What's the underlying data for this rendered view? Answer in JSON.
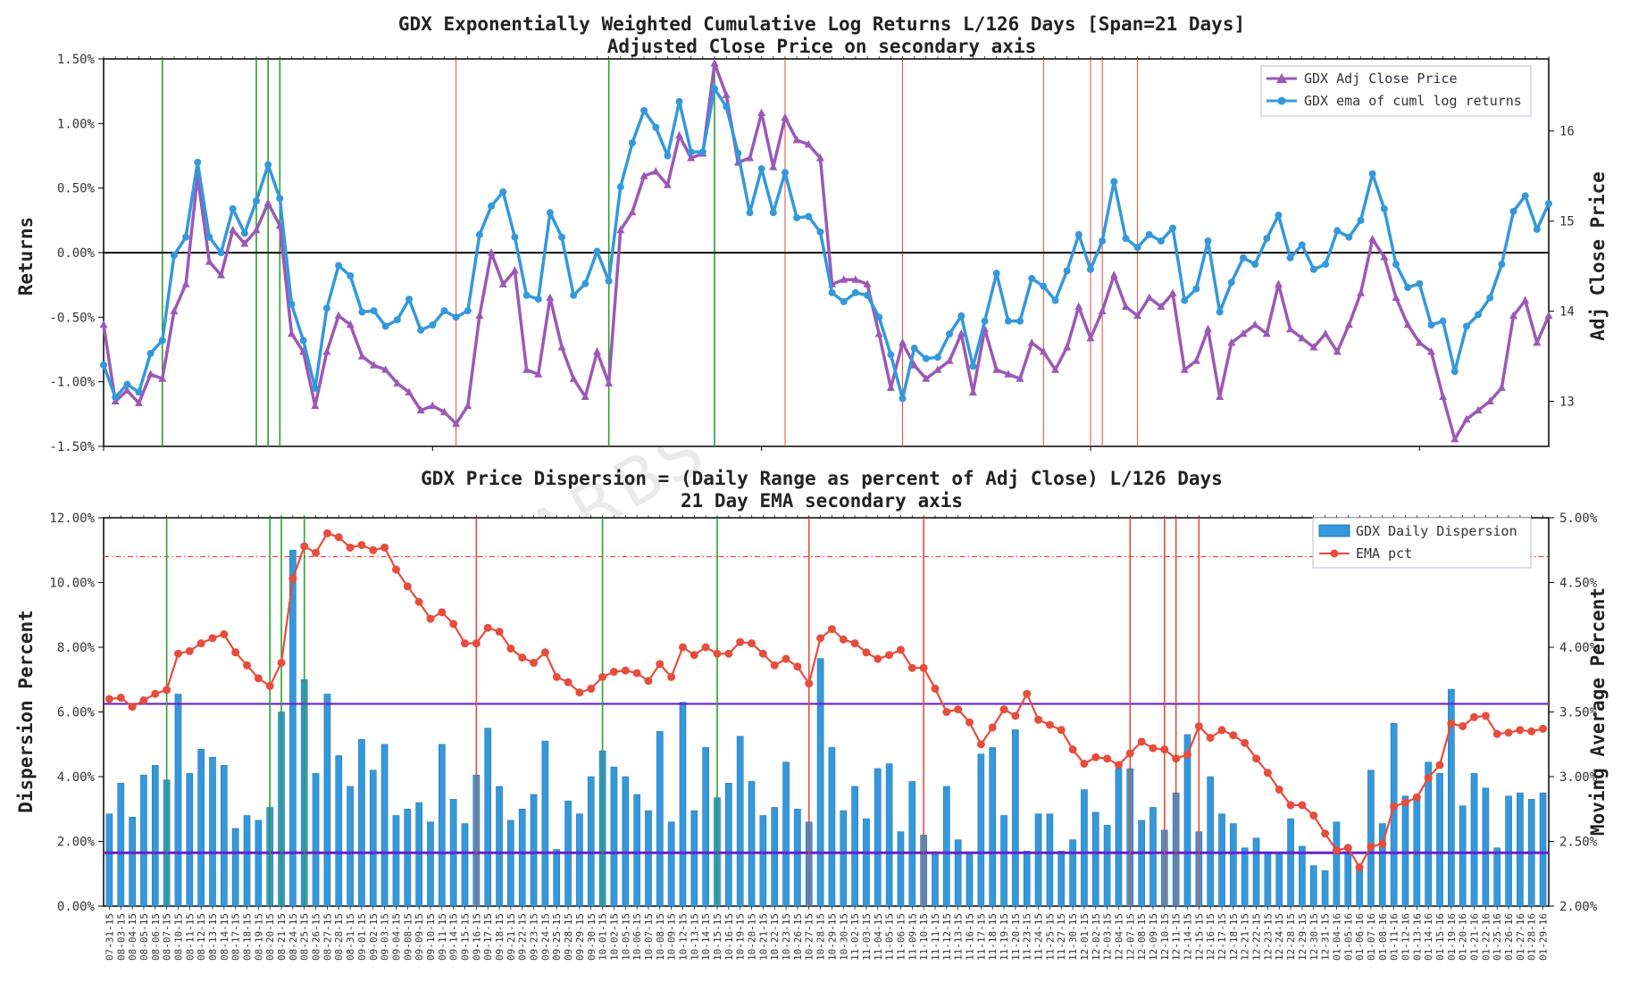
{
  "watermark": "BLACKARBS LLC",
  "colors": {
    "price": "#9b59b6",
    "ret": "#3498db",
    "bar": "#3498db",
    "ema": "#e74c3c",
    "green": "#2ca02c",
    "red": "#e74c3c",
    "purple": "#6a1fcf",
    "zero": "#000000"
  },
  "chart_data": [
    {
      "type": "line",
      "title": "GDX Exponentially Weighted Cumulative Log Returns L/126 Days [Span=21 Days]",
      "subtitle": "Adjusted Close Price on secondary axis",
      "ylabel": "Returns",
      "ylabel2": "Adj Close Price",
      "ylim": [
        -1.5,
        1.5
      ],
      "ylim2": [
        12.5,
        16.8
      ],
      "yticks": [
        "1.50%",
        "1.00%",
        "0.50%",
        "0.00%",
        "-0.50%",
        "-1.00%",
        "-1.50%"
      ],
      "yticks2": [
        "16",
        "15",
        "14",
        "13"
      ],
      "legend": [
        "GDX Adj Close Price",
        "GDX ema of cuml log returns"
      ],
      "green_lines": [
        5,
        13,
        14,
        15,
        43,
        52
      ],
      "red_lines": [
        30,
        58,
        68,
        80,
        84,
        85,
        88
      ],
      "series": [
        {
          "name": "GDX ema of cuml log returns",
          "values": [
            -0.87,
            -1.12,
            -1.02,
            -1.08,
            -0.78,
            -0.68,
            -0.02,
            0.12,
            0.7,
            0.12,
            0.0,
            0.34,
            0.15,
            0.4,
            0.68,
            0.42,
            -0.4,
            -0.68,
            -1.05,
            -0.43,
            -0.1,
            -0.18,
            -0.46,
            -0.45,
            -0.57,
            -0.52,
            -0.36,
            -0.6,
            -0.56,
            -0.45,
            -0.5,
            -0.45,
            0.14,
            0.36,
            0.47,
            0.12,
            -0.33,
            -0.36,
            0.31,
            0.12,
            -0.33,
            -0.24,
            0.01,
            -0.22,
            0.51,
            0.85,
            1.1,
            0.97,
            0.75,
            1.17,
            0.78,
            0.78,
            1.27,
            1.13,
            0.77,
            0.31,
            0.65,
            0.31,
            0.62,
            0.27,
            0.28,
            0.16,
            -0.31,
            -0.38,
            -0.31,
            -0.33,
            -0.5,
            -0.79,
            -1.13,
            -0.74,
            -0.82,
            -0.81,
            -0.63,
            -0.49,
            -0.88,
            -0.53,
            -0.16,
            -0.53,
            -0.53,
            -0.2,
            -0.26,
            -0.37,
            -0.14,
            0.14,
            -0.13,
            0.09,
            0.55,
            0.11,
            0.04,
            0.14,
            0.09,
            0.19,
            -0.37,
            -0.28,
            0.09,
            -0.46,
            -0.23,
            -0.04,
            -0.09,
            0.11,
            0.29,
            -0.04,
            0.06,
            -0.13,
            -0.09,
            0.17,
            0.12,
            0.25,
            0.61,
            0.34,
            -0.09,
            -0.27,
            -0.24,
            -0.56,
            -0.53,
            -0.92,
            -0.57,
            -0.48,
            -0.35,
            -0.09,
            0.32,
            0.44,
            0.18,
            0.38
          ]
        },
        {
          "name": "GDX Adj Close Price",
          "values": [
            13.85,
            13.0,
            13.12,
            12.98,
            13.3,
            13.25,
            14.0,
            14.3,
            15.5,
            14.55,
            14.4,
            14.9,
            14.75,
            14.9,
            15.2,
            14.95,
            13.75,
            13.55,
            12.95,
            13.55,
            13.95,
            13.85,
            13.5,
            13.4,
            13.35,
            13.2,
            13.1,
            12.9,
            12.95,
            12.88,
            12.75,
            12.95,
            13.95,
            14.65,
            14.3,
            14.45,
            13.35,
            13.3,
            14.15,
            13.6,
            13.25,
            13.05,
            13.55,
            13.2,
            14.9,
            15.1,
            15.5,
            15.55,
            15.4,
            15.95,
            15.7,
            15.75,
            16.75,
            16.4,
            15.65,
            15.7,
            16.2,
            15.6,
            16.15,
            15.9,
            15.85,
            15.7,
            14.3,
            14.35,
            14.35,
            14.3,
            13.75,
            13.15,
            13.65,
            13.4,
            13.25,
            13.35,
            13.45,
            13.75,
            13.1,
            13.8,
            13.35,
            13.3,
            13.25,
            13.65,
            13.55,
            13.35,
            13.6,
            14.05,
            13.7,
            14.0,
            14.4,
            14.05,
            13.95,
            14.15,
            14.05,
            14.2,
            13.35,
            13.45,
            13.8,
            13.05,
            13.65,
            13.75,
            13.85,
            13.75,
            14.3,
            13.8,
            13.7,
            13.6,
            13.75,
            13.55,
            13.85,
            14.2,
            14.8,
            14.6,
            14.15,
            13.85,
            13.65,
            13.55,
            13.05,
            12.58,
            12.8,
            12.9,
            13.0,
            13.15,
            13.95,
            14.12,
            13.65,
            13.95
          ]
        }
      ]
    },
    {
      "type": "bar",
      "title": "GDX Price Dispersion = (Daily Range as percent of Adj Close) L/126 Days",
      "subtitle": "21 Day EMA secondary axis",
      "ylabel": "Dispersion Percent",
      "ylabel2": "Moving Average Percent",
      "ylim": [
        0,
        12
      ],
      "ylim2": [
        2.0,
        5.0
      ],
      "yticks": [
        "12.00%",
        "10.00%",
        "8.00%",
        "6.00%",
        "4.00%",
        "2.00%",
        "0.00%"
      ],
      "yticks2": [
        "5.00%",
        "4.50%",
        "4.00%",
        "3.50%",
        "3.00%",
        "2.50%",
        "2.00%"
      ],
      "legend": [
        "GDX Daily Dispersion",
        "EMA pct"
      ],
      "hlines": {
        "upper": 6.25,
        "lower": 1.65,
        "ema_ref": 4.7
      },
      "green_lines": [
        5,
        14,
        15,
        17,
        43,
        53
      ],
      "red_lines": [
        32,
        61,
        71,
        89,
        92,
        93,
        95
      ],
      "x": [
        "07-31-15",
        "08-03-15",
        "08-04-15",
        "08-05-15",
        "08-06-15",
        "08-07-15",
        "08-10-15",
        "08-11-15",
        "08-12-15",
        "08-13-15",
        "08-14-15",
        "08-17-15",
        "08-18-15",
        "08-19-15",
        "08-20-15",
        "08-21-15",
        "08-24-15",
        "08-25-15",
        "08-26-15",
        "08-27-15",
        "08-28-15",
        "08-31-15",
        "09-01-15",
        "09-02-15",
        "09-03-15",
        "09-04-15",
        "09-08-15",
        "09-09-15",
        "09-10-15",
        "09-11-15",
        "09-14-15",
        "09-15-15",
        "09-16-15",
        "09-17-15",
        "09-18-15",
        "09-21-15",
        "09-22-15",
        "09-23-15",
        "09-24-15",
        "09-25-15",
        "09-28-15",
        "09-29-15",
        "09-30-15",
        "10-01-15",
        "10-02-15",
        "10-05-15",
        "10-06-15",
        "10-07-15",
        "10-08-15",
        "10-09-15",
        "10-12-15",
        "10-13-15",
        "10-14-15",
        "10-15-15",
        "10-16-15",
        "10-19-15",
        "10-20-15",
        "10-21-15",
        "10-22-15",
        "10-23-15",
        "10-26-15",
        "10-27-15",
        "10-28-15",
        "10-29-15",
        "10-30-15",
        "11-02-15",
        "11-03-15",
        "11-04-15",
        "11-05-15",
        "11-06-15",
        "11-09-15",
        "11-10-15",
        "11-11-15",
        "11-12-15",
        "11-13-15",
        "11-16-15",
        "11-17-15",
        "11-18-15",
        "11-19-15",
        "11-20-15",
        "11-23-15",
        "11-24-15",
        "11-25-15",
        "11-27-15",
        "11-30-15",
        "12-01-15",
        "12-02-15",
        "12-03-15",
        "12-04-15",
        "12-07-15",
        "12-08-15",
        "12-09-15",
        "12-10-15",
        "12-11-15",
        "12-14-15",
        "12-15-15",
        "12-16-15",
        "12-17-15",
        "12-18-15",
        "12-21-15",
        "12-22-15",
        "12-23-15",
        "12-24-15",
        "12-28-15",
        "12-29-15",
        "12-30-15",
        "12-31-15",
        "01-04-16",
        "01-05-16",
        "01-06-16",
        "01-07-16",
        "01-08-16",
        "01-11-16",
        "01-12-16",
        "01-13-16",
        "01-14-16",
        "01-15-16",
        "01-19-16",
        "01-20-16",
        "01-21-16",
        "01-22-16",
        "01-25-16",
        "01-26-16",
        "01-27-16",
        "01-28-16",
        "01-29-16"
      ],
      "series": [
        {
          "name": "GDX Daily Dispersion",
          "values": [
            2.85,
            3.8,
            2.75,
            4.05,
            4.35,
            3.9,
            6.55,
            4.1,
            4.85,
            4.6,
            4.35,
            2.4,
            2.8,
            2.65,
            3.05,
            6.0,
            11.0,
            7.0,
            4.1,
            6.55,
            4.65,
            3.7,
            5.15,
            4.2,
            5.0,
            2.8,
            3.0,
            3.2,
            2.6,
            5.0,
            3.3,
            2.55,
            4.05,
            5.5,
            3.7,
            2.65,
            3.0,
            3.45,
            5.1,
            1.75,
            3.25,
            2.85,
            4.0,
            4.8,
            4.3,
            4.0,
            3.45,
            2.95,
            5.4,
            2.6,
            6.3,
            2.95,
            4.9,
            3.35,
            3.8,
            5.25,
            3.85,
            2.8,
            3.05,
            4.45,
            3.0,
            2.6,
            7.65,
            4.9,
            2.95,
            3.7,
            2.7,
            4.25,
            4.4,
            2.3,
            3.85,
            2.2,
            1.6,
            3.7,
            2.05,
            1.6,
            4.7,
            4.9,
            2.8,
            5.45,
            1.7,
            2.85,
            2.85,
            1.7,
            2.05,
            3.6,
            2.9,
            2.5,
            4.25,
            4.25,
            2.65,
            3.05,
            2.35,
            3.5,
            5.3,
            2.3,
            4.0,
            2.85,
            2.55,
            1.8,
            2.1,
            1.65,
            1.65,
            2.7,
            1.85,
            1.25,
            1.1,
            2.6,
            1.6,
            1.2,
            4.2,
            2.55,
            5.65,
            3.4,
            3.3,
            4.45,
            4.1,
            6.7,
            3.1,
            4.1,
            3.65,
            1.8,
            3.4,
            3.5,
            3.3,
            3.5
          ]
        },
        {
          "name": "EMA pct",
          "values": [
            3.6,
            3.61,
            3.54,
            3.59,
            3.64,
            3.67,
            3.95,
            3.97,
            4.03,
            4.07,
            4.1,
            3.96,
            3.86,
            3.76,
            3.7,
            3.88,
            4.53,
            4.78,
            4.73,
            4.88,
            4.85,
            4.77,
            4.79,
            4.75,
            4.77,
            4.6,
            4.47,
            4.35,
            4.22,
            4.27,
            4.18,
            4.03,
            4.03,
            4.15,
            4.12,
            3.99,
            3.92,
            3.88,
            3.96,
            3.77,
            3.73,
            3.65,
            3.68,
            3.77,
            3.81,
            3.82,
            3.8,
            3.74,
            3.87,
            3.77,
            4.0,
            3.94,
            4.0,
            3.95,
            3.95,
            4.04,
            4.03,
            3.95,
            3.86,
            3.91,
            3.85,
            3.72,
            4.07,
            4.14,
            4.06,
            4.03,
            3.96,
            3.91,
            3.94,
            3.98,
            3.84,
            3.84,
            3.68,
            3.5,
            3.52,
            3.42,
            3.25,
            3.38,
            3.52,
            3.47,
            3.64,
            3.44,
            3.4,
            3.36,
            3.21,
            3.1,
            3.15,
            3.14,
            3.09,
            3.18,
            3.27,
            3.22,
            3.21,
            3.14,
            3.17,
            3.39,
            3.3,
            3.36,
            3.32,
            3.26,
            3.14,
            3.03,
            2.9,
            2.78,
            2.78,
            2.7,
            2.56,
            2.43,
            2.45,
            2.3,
            2.46,
            2.48,
            2.77,
            2.8,
            2.84,
            2.99,
            3.09,
            3.41,
            3.39,
            3.46,
            3.47,
            3.33,
            3.34,
            3.36,
            3.35,
            3.37
          ]
        }
      ]
    }
  ]
}
